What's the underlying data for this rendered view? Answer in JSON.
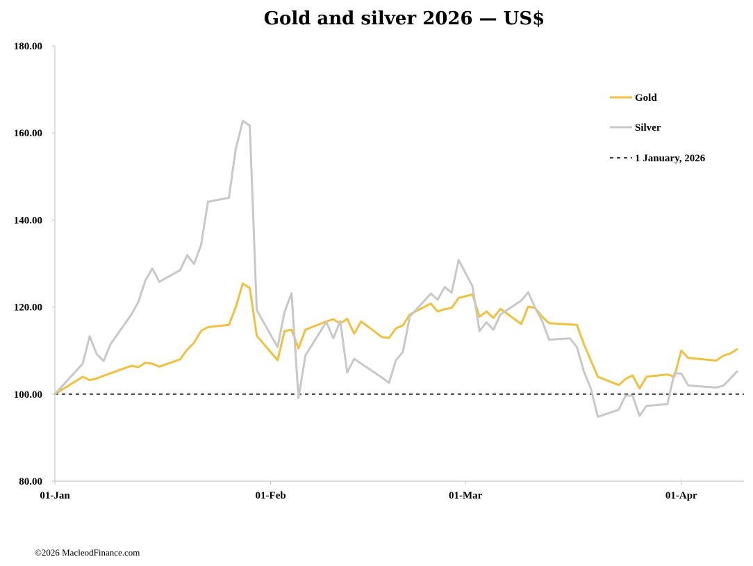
{
  "chart_data": {
    "type": "line",
    "title": "Gold and silver 2026 — US$",
    "xlabel": "",
    "ylabel": "",
    "ylim": [
      80,
      180
    ],
    "yticks": [
      "80.00",
      "100.00",
      "120.00",
      "140.00",
      "160.00",
      "180.00"
    ],
    "xticks": [
      {
        "label": "01-Jan",
        "date": "2026-01-01"
      },
      {
        "label": "01-Feb",
        "date": "2026-02-01"
      },
      {
        "label": "01-Mar",
        "date": "2026-03-01"
      },
      {
        "label": "01-Apr",
        "date": "2026-04-01"
      }
    ],
    "xlim": [
      "2026-01-01",
      "2026-04-10"
    ],
    "grid": false,
    "legend_position": "top-right",
    "reference_line": {
      "name": "1 January, 2026",
      "value": 100,
      "style": "dashed",
      "color": "#000000"
    },
    "series": [
      {
        "name": "Gold",
        "color": "#F0C040",
        "points": [
          [
            "2026-01-01",
            100
          ],
          [
            "2026-01-02",
            101
          ],
          [
            "2026-01-05",
            104
          ],
          [
            "2026-01-06",
            103.2
          ],
          [
            "2026-01-07",
            103.6
          ],
          [
            "2026-01-08",
            104.2
          ],
          [
            "2026-01-09",
            104.8
          ],
          [
            "2026-01-12",
            106.5
          ],
          [
            "2026-01-13",
            106.2
          ],
          [
            "2026-01-14",
            107.2
          ],
          [
            "2026-01-15",
            107
          ],
          [
            "2026-01-16",
            106.3
          ],
          [
            "2026-01-19",
            108
          ],
          [
            "2026-01-20",
            110.2
          ],
          [
            "2026-01-21",
            111.8
          ],
          [
            "2026-01-22",
            114.5
          ],
          [
            "2026-01-23",
            115.4
          ],
          [
            "2026-01-26",
            115.9
          ],
          [
            "2026-01-27",
            120
          ],
          [
            "2026-01-28",
            125.4
          ],
          [
            "2026-01-29",
            124.4
          ],
          [
            "2026-01-30",
            113.4
          ],
          [
            "2026-02-02",
            107.8
          ],
          [
            "2026-02-03",
            114.5
          ],
          [
            "2026-02-04",
            114.8
          ],
          [
            "2026-02-05",
            110.5
          ],
          [
            "2026-02-06",
            114.8
          ],
          [
            "2026-02-09",
            116.7
          ],
          [
            "2026-02-10",
            117.2
          ],
          [
            "2026-02-11",
            116.2
          ],
          [
            "2026-02-12",
            117.3
          ],
          [
            "2026-02-13",
            113.9
          ],
          [
            "2026-02-14",
            116.7
          ],
          [
            "2026-02-17",
            113.1
          ],
          [
            "2026-02-18",
            112.9
          ],
          [
            "2026-02-19",
            115.1
          ],
          [
            "2026-02-20",
            115.8
          ],
          [
            "2026-02-21",
            118.3
          ],
          [
            "2026-02-24",
            120.8
          ],
          [
            "2026-02-25",
            119
          ],
          [
            "2026-02-26",
            119.5
          ],
          [
            "2026-02-27",
            119.8
          ],
          [
            "2026-02-28",
            122.1
          ],
          [
            "2026-03-02",
            122.9
          ],
          [
            "2026-03-03",
            117.8
          ],
          [
            "2026-03-04",
            119
          ],
          [
            "2026-03-05",
            117.5
          ],
          [
            "2026-03-06",
            119.6
          ],
          [
            "2026-03-09",
            116.1
          ],
          [
            "2026-03-10",
            120.1
          ],
          [
            "2026-03-11",
            119.8
          ],
          [
            "2026-03-12",
            117.8
          ],
          [
            "2026-03-13",
            116.3
          ],
          [
            "2026-03-16",
            116
          ],
          [
            "2026-03-17",
            115.9
          ],
          [
            "2026-03-18",
            111.5
          ],
          [
            "2026-03-20",
            104
          ],
          [
            "2026-03-23",
            102.1
          ],
          [
            "2026-03-24",
            103.5
          ],
          [
            "2026-03-25",
            104.3
          ],
          [
            "2026-03-26",
            101.3
          ],
          [
            "2026-03-27",
            104
          ],
          [
            "2026-03-30",
            104.5
          ],
          [
            "2026-03-31",
            104
          ],
          [
            "2026-04-01",
            110
          ],
          [
            "2026-04-02",
            108.3
          ],
          [
            "2026-04-06",
            107.7
          ],
          [
            "2026-04-07",
            108.8
          ],
          [
            "2026-04-08",
            109.3
          ],
          [
            "2026-04-09",
            110.3
          ]
        ]
      },
      {
        "name": "Silver",
        "color": "#C8C8C8",
        "points": [
          [
            "2026-01-01",
            100
          ],
          [
            "2026-01-05",
            107
          ],
          [
            "2026-01-06",
            113.3
          ],
          [
            "2026-01-07",
            109.2
          ],
          [
            "2026-01-08",
            107.6
          ],
          [
            "2026-01-09",
            111.5
          ],
          [
            "2026-01-12",
            118.3
          ],
          [
            "2026-01-13",
            121.2
          ],
          [
            "2026-01-14",
            126.1
          ],
          [
            "2026-01-15",
            128.9
          ],
          [
            "2026-01-16",
            125.8
          ],
          [
            "2026-01-19",
            128.5
          ],
          [
            "2026-01-20",
            131.9
          ],
          [
            "2026-01-21",
            129.9
          ],
          [
            "2026-01-22",
            134.2
          ],
          [
            "2026-01-23",
            144.2
          ],
          [
            "2026-01-26",
            145.1
          ],
          [
            "2026-01-27",
            156.4
          ],
          [
            "2026-01-28",
            162.8
          ],
          [
            "2026-01-29",
            161.7
          ],
          [
            "2026-01-30",
            119.3
          ],
          [
            "2026-02-02",
            110.8
          ],
          [
            "2026-02-03",
            118.9
          ],
          [
            "2026-02-04",
            123.2
          ],
          [
            "2026-02-05",
            99.1
          ],
          [
            "2026-02-06",
            108.9
          ],
          [
            "2026-02-09",
            116.6
          ],
          [
            "2026-02-10",
            112.8
          ],
          [
            "2026-02-11",
            116.8
          ],
          [
            "2026-02-12",
            105
          ],
          [
            "2026-02-13",
            108.1
          ],
          [
            "2026-02-17",
            103.8
          ],
          [
            "2026-02-18",
            102.6
          ],
          [
            "2026-02-19",
            107.8
          ],
          [
            "2026-02-20",
            109.7
          ],
          [
            "2026-02-21",
            117.8
          ],
          [
            "2026-02-24",
            123.1
          ],
          [
            "2026-02-25",
            121.7
          ],
          [
            "2026-02-26",
            124.6
          ],
          [
            "2026-02-27",
            123.3
          ],
          [
            "2026-02-28",
            130.8
          ],
          [
            "2026-03-02",
            124.8
          ],
          [
            "2026-03-03",
            114.5
          ],
          [
            "2026-03-04",
            116.5
          ],
          [
            "2026-03-05",
            114.8
          ],
          [
            "2026-03-06",
            118.3
          ],
          [
            "2026-03-09",
            121.5
          ],
          [
            "2026-03-10",
            123.4
          ],
          [
            "2026-03-11",
            119.8
          ],
          [
            "2026-03-12",
            116.8
          ],
          [
            "2026-03-13",
            112.5
          ],
          [
            "2026-03-16",
            112.8
          ],
          [
            "2026-03-17",
            110.8
          ],
          [
            "2026-03-18",
            105.2
          ],
          [
            "2026-03-19",
            101.3
          ],
          [
            "2026-03-20",
            94.8
          ],
          [
            "2026-03-23",
            96.4
          ],
          [
            "2026-03-24",
            99.7
          ],
          [
            "2026-03-25",
            99.6
          ],
          [
            "2026-03-26",
            95
          ],
          [
            "2026-03-27",
            97.3
          ],
          [
            "2026-03-30",
            97.7
          ],
          [
            "2026-03-31",
            104.8
          ],
          [
            "2026-04-01",
            104.7
          ],
          [
            "2026-04-02",
            102
          ],
          [
            "2026-04-06",
            101.5
          ],
          [
            "2026-04-07",
            101.9
          ],
          [
            "2026-04-08",
            103.5
          ],
          [
            "2026-04-09",
            105.2
          ]
        ]
      }
    ]
  },
  "footer": {
    "copyright": "©2026 MacleodFinance.com"
  }
}
